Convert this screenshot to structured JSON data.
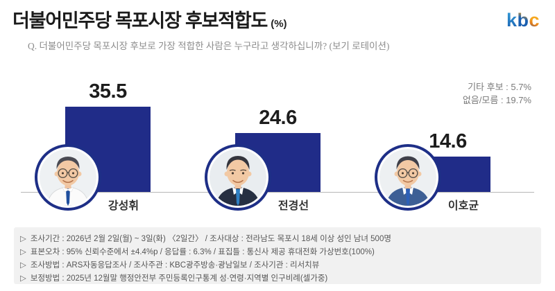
{
  "header": {
    "title": "더불어민주당 목포시장 후보적합도",
    "title_unit": "(%)",
    "logo_letters": [
      "k",
      "b",
      "c"
    ],
    "question": "Q. 더불어민주당 목포시장 후보로 가장 적합한 사람은 누구라고 생각하십니까? (보기 로테이션)"
  },
  "side_stats": {
    "other": "기타 후보 : 5.7%",
    "none": "없음/모름 : 19.7%"
  },
  "chart_data": {
    "type": "bar",
    "title": "더불어민주당 목포시장 후보적합도 (%)",
    "categories": [
      "강성휘",
      "전경선",
      "이호균"
    ],
    "values": [
      35.5,
      24.6,
      14.6
    ],
    "data_labels": [
      "35.5",
      "24.6",
      "14.6"
    ],
    "other_candidates_pct": 5.7,
    "none_dont_know_pct": 19.7,
    "unit": "%",
    "ylim": [
      0,
      40
    ],
    "grid": false,
    "legend": false,
    "bar_color": "#202c88"
  },
  "candidates": [
    {
      "name": "강성휘",
      "value": "35.5"
    },
    {
      "name": "전경선",
      "value": "24.6"
    },
    {
      "name": "이호균",
      "value": "14.6"
    }
  ],
  "footer": {
    "bullet": "▷",
    "lines": [
      "조사기간 : 2026년 2월 2일(월) ~ 3일(화) 〈2일간〉 / 조사대상 : 전라남도 목포시 18세 이상 성인 남녀 500명",
      "표본오차 : 95% 신뢰수준에서 ±4.4%p / 응답률 : 6.3% / 표집틀 : 통신사 제공 휴대전화 가상번호(100%)",
      "조사방법 : ARS자동응답조사 / 조사주관 : KBC광주방송·광남일보 / 조사기관 : 리서치뷰",
      "보정방법 : 2025년 12월말 행정안전부 주민등록인구통계 성·연령·지역별 인구비례(셀가중)"
    ]
  },
  "colors": {
    "bar": "#202c88",
    "photo_ring": "#1e2f87",
    "axis": "#b5b5b5",
    "title_text": "#1b1b1b",
    "question_text": "#8c8c8c",
    "side_stats_text": "#7a7a7a",
    "footer_bg": "#f1f1f1",
    "footer_text": "#555555",
    "logo_blue": "#1a5fb0",
    "logo_orange": "#f0a21e"
  }
}
